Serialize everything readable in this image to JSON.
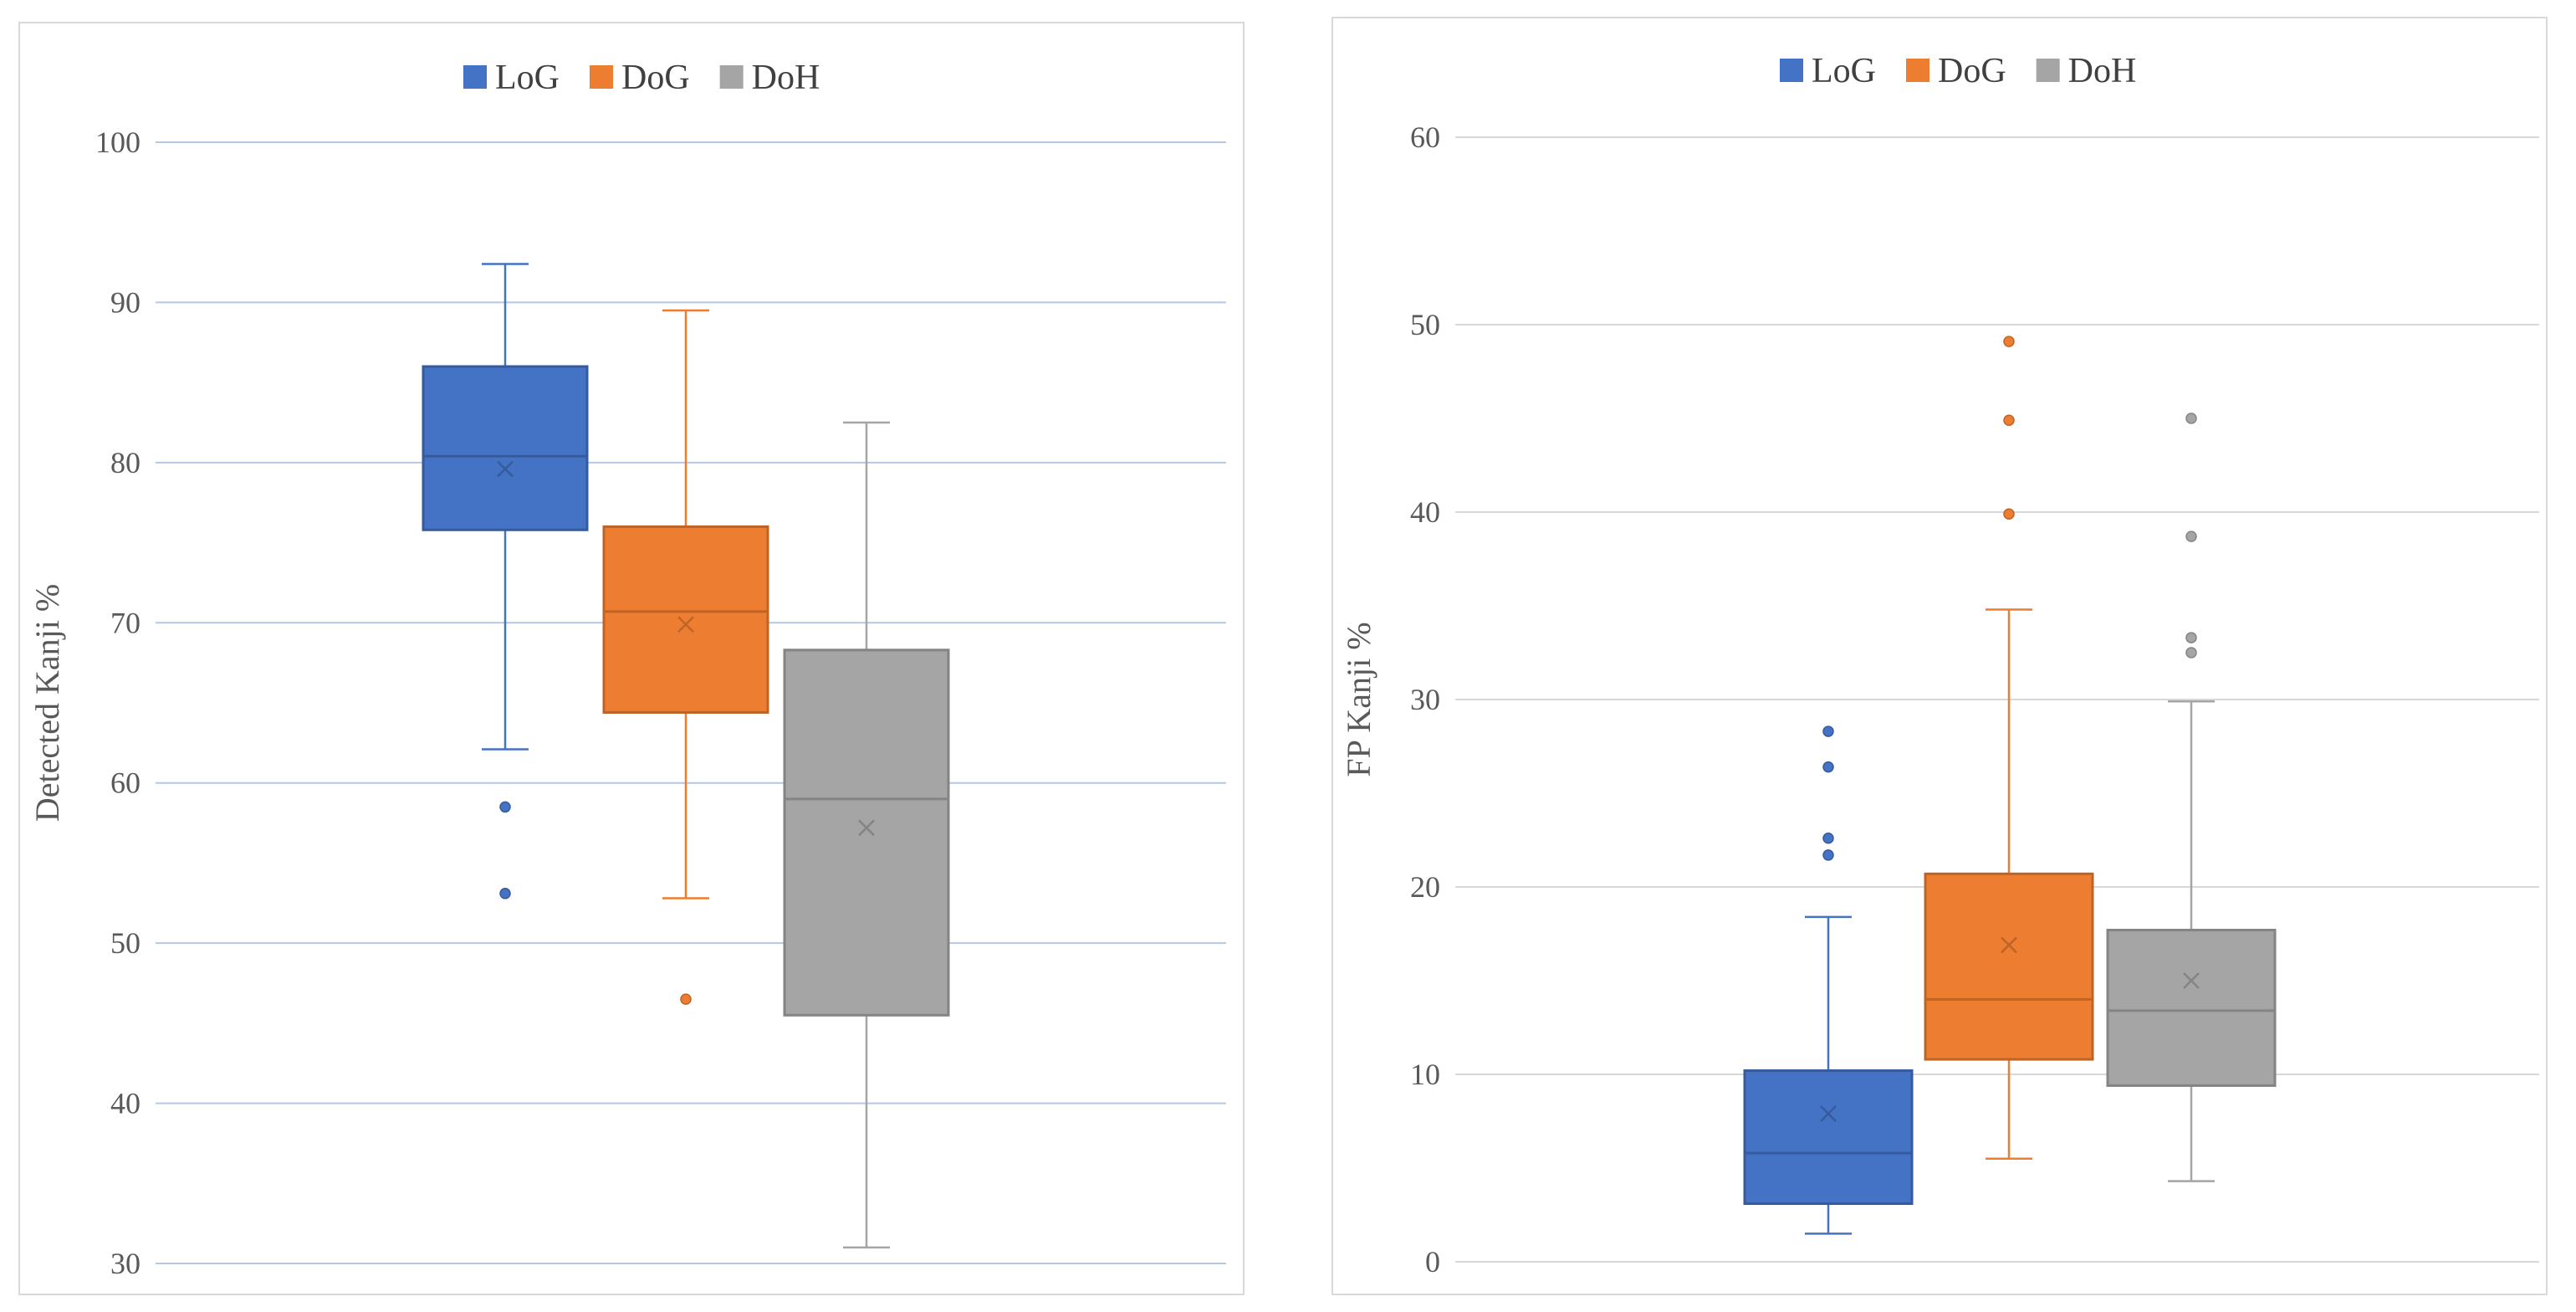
{
  "chart_data": [
    {
      "type": "box",
      "title": "",
      "xlabel": "",
      "ylabel": "Detected Kanji %",
      "ylim": [
        30,
        100
      ],
      "yticks": [
        "30",
        "40",
        "50",
        "60",
        "70",
        "80",
        "90",
        "100"
      ],
      "grid": true,
      "legend_position": "top-center",
      "legend": [
        "LoG",
        "DoG",
        "DoH"
      ],
      "series": [
        {
          "name": "LoG",
          "color": "#4472C4",
          "min": 62.1,
          "q1": 75.8,
          "median": 80.4,
          "mean": 79.6,
          "q3": 86.0,
          "max": 92.4,
          "outliers": [
            58.5,
            53.1
          ]
        },
        {
          "name": "DoG",
          "color": "#ED7D31",
          "min": 52.8,
          "q1": 64.4,
          "median": 70.7,
          "mean": 69.9,
          "q3": 76.0,
          "max": 89.5,
          "outliers": [
            46.5
          ]
        },
        {
          "name": "DoH",
          "color": "#A5A5A5",
          "min": 31.0,
          "q1": 45.5,
          "median": 59.0,
          "mean": 57.2,
          "q3": 68.3,
          "max": 82.5,
          "outliers": []
        }
      ]
    },
    {
      "type": "box",
      "title": "",
      "xlabel": "",
      "ylabel": "FP Kanji %",
      "ylim": [
        0,
        60
      ],
      "yticks": [
        "0",
        "10",
        "20",
        "30",
        "40",
        "50",
        "60"
      ],
      "grid": true,
      "legend_position": "top-center",
      "legend": [
        "LoG",
        "DoG",
        "DoH"
      ],
      "series": [
        {
          "name": "LoG",
          "color": "#4472C4",
          "min": 1.5,
          "q1": 3.1,
          "median": 5.8,
          "mean": 7.9,
          "q3": 10.2,
          "max": 18.4,
          "outliers": [
            21.7,
            22.6,
            26.4,
            28.3
          ]
        },
        {
          "name": "DoG",
          "color": "#ED7D31",
          "min": 5.5,
          "q1": 10.8,
          "median": 14.0,
          "mean": 16.9,
          "q3": 20.7,
          "max": 34.8,
          "outliers": [
            39.9,
            44.9,
            49.1
          ]
        },
        {
          "name": "DoH",
          "color": "#A5A5A5",
          "min": 4.3,
          "q1": 9.4,
          "median": 13.4,
          "mean": 15.0,
          "q3": 17.7,
          "max": 29.9,
          "outliers": [
            32.5,
            33.3,
            38.7,
            45.0
          ]
        }
      ]
    }
  ]
}
